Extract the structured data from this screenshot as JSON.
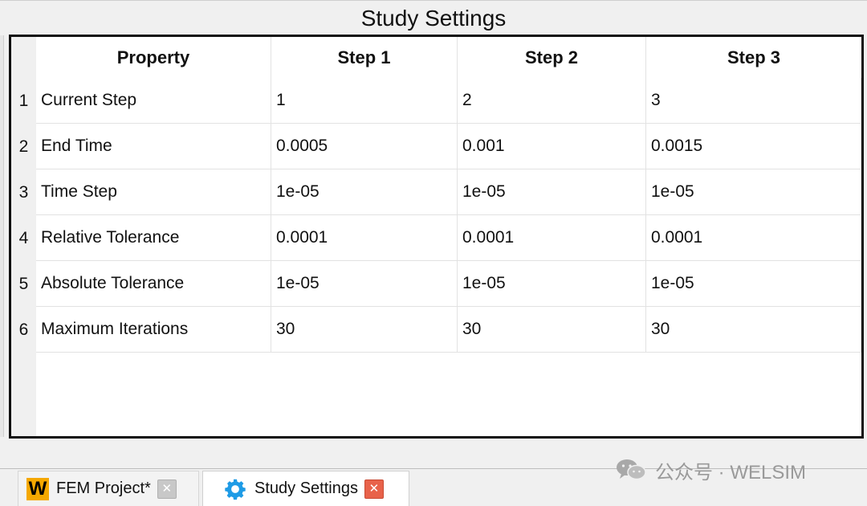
{
  "window": {
    "title": "Study Settings"
  },
  "table": {
    "headers": [
      "Property",
      "Step 1",
      "Step 2",
      "Step 3"
    ],
    "rows": [
      {
        "num": "1",
        "cells": [
          "Current Step",
          "1",
          "2",
          "3"
        ]
      },
      {
        "num": "2",
        "cells": [
          "End Time",
          "0.0005",
          "0.001",
          "0.0015"
        ]
      },
      {
        "num": "3",
        "cells": [
          "Time Step",
          "1e-05",
          "1e-05",
          "1e-05"
        ]
      },
      {
        "num": "4",
        "cells": [
          "Relative Tolerance",
          "0.0001",
          "0.0001",
          "0.0001"
        ]
      },
      {
        "num": "5",
        "cells": [
          "Absolute Tolerance",
          "1e-05",
          "1e-05",
          "1e-05"
        ]
      },
      {
        "num": "6",
        "cells": [
          "Maximum Iterations",
          "30",
          "30",
          "30"
        ]
      }
    ]
  },
  "tabs": [
    {
      "label": "FEM Project*",
      "icon": "w-app-icon",
      "close_icon": "close-icon",
      "active": false
    },
    {
      "label": "Study Settings",
      "icon": "gear-icon",
      "close_icon": "close-icon",
      "active": true
    }
  ],
  "icons": {
    "app_letter": "W",
    "close_glyph": "✕"
  },
  "watermark": {
    "text": "公众号 · WELSIM"
  },
  "colors": {
    "frame_border": "#111111",
    "app_icon": "#f5a800",
    "gear_icon": "#1e9be6",
    "close_active": "#e8624a",
    "close_inactive": "#c8c8c8"
  }
}
